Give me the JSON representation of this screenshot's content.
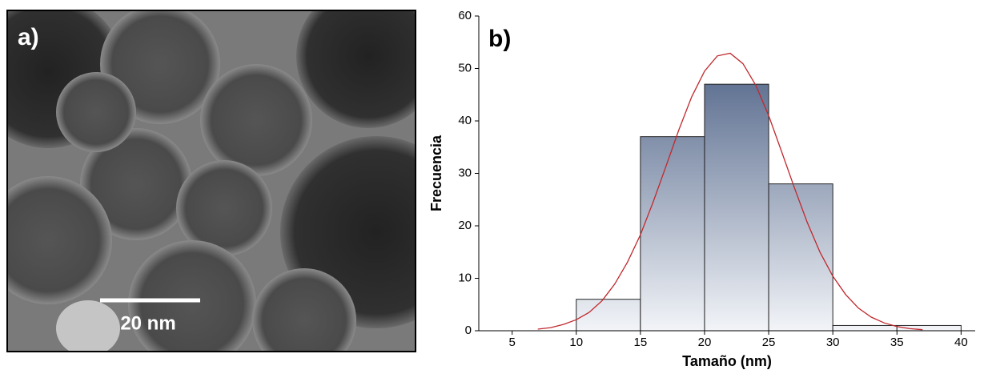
{
  "panel_a": {
    "label": "a)",
    "scale_bar": "20 nm"
  },
  "chart_data": {
    "type": "histogram",
    "label": "b)",
    "x_label": "Tamaño (nm)",
    "y_label": "Frecuencia",
    "bins": [
      10,
      15,
      20,
      25,
      30,
      35,
      40
    ],
    "counts": [
      6,
      37,
      47,
      28,
      1,
      1
    ],
    "color": "#3a5078",
    "curve": {
      "color": "#c0282d",
      "x": [
        7,
        8,
        9,
        10,
        11,
        12,
        13,
        14,
        15,
        16,
        17,
        18,
        19,
        20,
        21,
        22,
        23,
        24,
        25,
        26,
        27,
        28,
        29,
        30,
        31,
        32,
        33,
        34,
        35,
        36,
        37
      ],
      "values": [
        0.3,
        0.6,
        1.2,
        2.1,
        3.5,
        5.7,
        8.9,
        13.1,
        18.3,
        24.6,
        31.4,
        38.3,
        44.6,
        49.5,
        52.4,
        52.9,
        50.9,
        46.8,
        41.0,
        34.2,
        27.3,
        20.7,
        15.0,
        10.4,
        6.9,
        4.3,
        2.6,
        1.5,
        0.8,
        0.4,
        0.2
      ]
    },
    "xlim": [
      2.4,
      41.1
    ],
    "ylim": [
      0,
      60
    ],
    "xticks": [
      5,
      10,
      15,
      20,
      25,
      30,
      35,
      40
    ],
    "yticks": [
      0,
      10,
      20,
      30,
      40,
      50,
      60
    ]
  }
}
